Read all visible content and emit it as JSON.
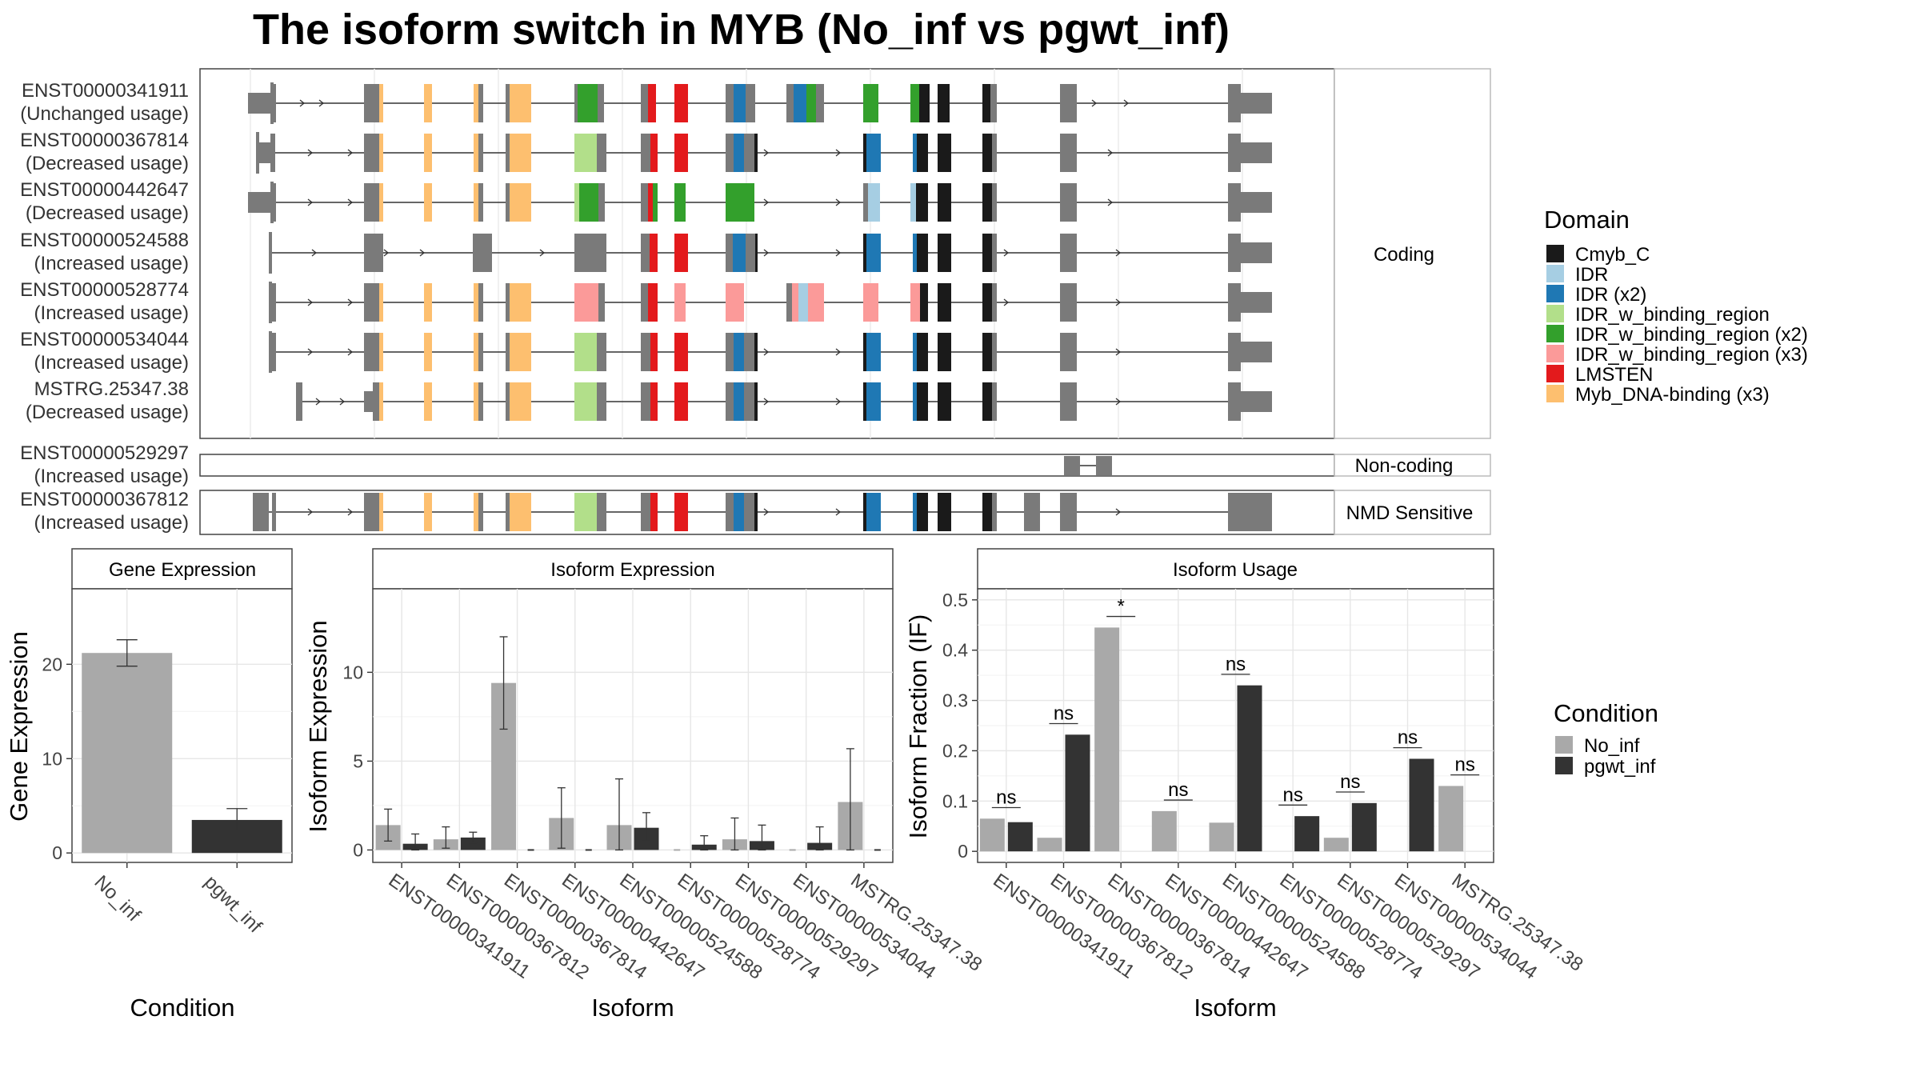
{
  "title": "The isoform switch in MYB (No_inf vs pgwt_inf)",
  "structure": {
    "categories": [
      "Coding",
      "Non-coding",
      "NMD Sensitive"
    ],
    "transcripts": [
      {
        "id": "ENST00000341911",
        "usage": "(Unchanged usage)",
        "category": "Coding"
      },
      {
        "id": "ENST00000367814",
        "usage": "(Decreased usage)",
        "category": "Coding"
      },
      {
        "id": "ENST00000442647",
        "usage": "(Decreased usage)",
        "category": "Coding"
      },
      {
        "id": "ENST00000524588",
        "usage": "(Increased usage)",
        "category": "Coding"
      },
      {
        "id": "ENST00000528774",
        "usage": "(Increased usage)",
        "category": "Coding"
      },
      {
        "id": "ENST00000534044",
        "usage": "(Increased usage)",
        "category": "Coding"
      },
      {
        "id": "MSTRG.25347.38",
        "usage": "(Decreased usage)",
        "category": "Coding"
      },
      {
        "id": "ENST00000529297",
        "usage": "(Increased usage)",
        "category": "Non-coding"
      },
      {
        "id": "ENST00000367812",
        "usage": "(Increased usage)",
        "category": "NMD Sensitive"
      }
    ],
    "domain_legend": {
      "title": "Domain",
      "items": [
        {
          "label": "Cmyb_C",
          "color": "#1a1a1a"
        },
        {
          "label": "IDR",
          "color": "#a6cee3"
        },
        {
          "label": "IDR (x2)",
          "color": "#1f78b4"
        },
        {
          "label": "IDR_w_binding_region",
          "color": "#b2df8a"
        },
        {
          "label": "IDR_w_binding_region (x2)",
          "color": "#33a02c"
        },
        {
          "label": "IDR_w_binding_region (x3)",
          "color": "#fb9a99"
        },
        {
          "label": "LMSTEN",
          "color": "#e31a1c"
        },
        {
          "label": "Myb_DNA-binding (x3)",
          "color": "#fdbf6f"
        }
      ]
    }
  },
  "condition_legend": {
    "title": "Condition",
    "items": [
      {
        "label": "No_inf",
        "color": "#a9a9a9"
      },
      {
        "label": "pgwt_inf",
        "color": "#333333"
      }
    ]
  },
  "chart_data": [
    {
      "type": "bar",
      "title": "Gene Expression",
      "xlabel": "Condition",
      "ylabel": "Gene Expression",
      "categories": [
        "No_inf",
        "pgwt_inf"
      ],
      "values": [
        21.2,
        3.5
      ],
      "error": [
        [
          19.8,
          22.6
        ],
        [
          2.4,
          4.7
        ]
      ],
      "yticks": [
        0,
        10,
        20
      ],
      "ylim": [
        -1,
        28
      ]
    },
    {
      "type": "bar",
      "title": "Isoform Expression",
      "xlabel": "Isoform",
      "ylabel": "Isoform Expression",
      "categories": [
        "ENST00000341911",
        "ENST00000367812",
        "ENST00000367814",
        "ENST00000442647",
        "ENST00000524588",
        "ENST00000528774",
        "ENST00000529297",
        "ENST00000534044",
        "MSTRG.25347.38"
      ],
      "series": [
        {
          "name": "No_inf",
          "values": [
            1.4,
            0.6,
            9.4,
            1.8,
            1.4,
            0.0,
            0.6,
            0.0,
            2.7
          ],
          "error": [
            [
              0.5,
              2.3
            ],
            [
              0.1,
              1.3
            ],
            [
              6.8,
              12.0
            ],
            [
              0.1,
              3.5
            ],
            [
              0.0,
              4.0
            ],
            [
              0.0,
              0.0
            ],
            [
              0.0,
              1.8
            ],
            [
              0.0,
              0.0
            ],
            [
              0.0,
              5.7
            ]
          ]
        },
        {
          "name": "pgwt_inf",
          "values": [
            0.35,
            0.7,
            0.0,
            0.0,
            1.25,
            0.3,
            0.5,
            0.4,
            0.0
          ],
          "error": [
            [
              0.0,
              0.9
            ],
            [
              0.4,
              1.0
            ],
            [
              0.0,
              0.0
            ],
            [
              0.0,
              0.0
            ],
            [
              0.5,
              2.1
            ],
            [
              0.0,
              0.8
            ],
            [
              0.0,
              1.4
            ],
            [
              0.0,
              1.3
            ],
            [
              0.0,
              0.0
            ]
          ]
        }
      ],
      "yticks": [
        0,
        5,
        10
      ],
      "ylim": [
        -0.7,
        14.7
      ]
    },
    {
      "type": "bar",
      "title": "Isoform Usage",
      "xlabel": "Isoform",
      "ylabel": "Isoform Fraction (IF)",
      "categories": [
        "ENST00000341911",
        "ENST00000367812",
        "ENST00000367814",
        "ENST00000442647",
        "ENST00000524588",
        "ENST00000528774",
        "ENST00000529297",
        "ENST00000534044",
        "MSTRG.25347.38"
      ],
      "series": [
        {
          "name": "No_inf",
          "values": [
            0.065,
            0.027,
            0.445,
            0.08,
            0.057,
            0.0,
            0.027,
            0.0,
            0.13
          ]
        },
        {
          "name": "pgwt_inf",
          "values": [
            0.058,
            0.232,
            0.0,
            0.0,
            0.33,
            0.07,
            0.096,
            0.184,
            0.0
          ]
        }
      ],
      "significance": [
        "ns",
        "ns",
        "*",
        "ns",
        "ns",
        "ns",
        "ns",
        "ns",
        "ns"
      ],
      "yticks": [
        0.0,
        0.1,
        0.2,
        0.3,
        0.4,
        0.5
      ],
      "ylim": [
        -0.022,
        0.522
      ]
    }
  ]
}
